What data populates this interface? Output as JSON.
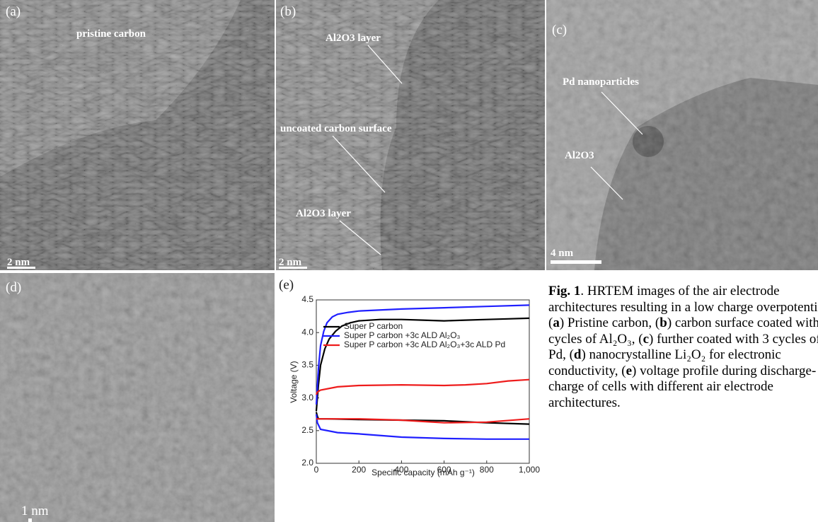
{
  "panels": [
    {
      "label": "(a)",
      "annotations": [
        "pristine carbon"
      ],
      "scale": "2 nm"
    },
    {
      "label": "(b)",
      "annotations": [
        "Al2O3 layer",
        "uncoated carbon surface",
        "Al2O3 layer"
      ],
      "scale": "2 nm"
    },
    {
      "label": "(c)",
      "annotations": [
        "Pd nanoparticles",
        "Al2O3"
      ],
      "scale": "4 nm"
    },
    {
      "label": "(d)",
      "annotations": [],
      "scale": "1 nm"
    },
    {
      "label": "(e)"
    }
  ],
  "chart_data": {
    "type": "line",
    "xlabel": "Specific capacity (mAh g⁻¹)",
    "ylabel": "Voltage (V)",
    "xlim": [
      0,
      1000
    ],
    "ylim": [
      2.0,
      4.5
    ],
    "xticks": [
      0,
      200,
      400,
      600,
      800,
      {
        "value": 1000,
        "label": "1,000"
      }
    ],
    "yticks": [
      {
        "value": 2.0,
        "label": "2.0"
      },
      {
        "value": 2.5,
        "label": "2.5"
      },
      {
        "value": 3.0,
        "label": "3.0"
      },
      {
        "value": 3.5,
        "label": "3.5"
      },
      {
        "value": 4.0,
        "label": "4.0"
      },
      {
        "value": 4.5,
        "label": "4.5"
      }
    ],
    "series": [
      {
        "name": "Super P carbon",
        "color": "#000000",
        "x": [
          0,
          10,
          20,
          40,
          60,
          90,
          120,
          160,
          200,
          300,
          400,
          500,
          600,
          700,
          800,
          900,
          1000,
          null,
          0,
          5,
          10,
          50,
          200,
          400,
          600,
          800,
          1000
        ],
        "values": [
          2.8,
          3.2,
          3.5,
          3.75,
          3.9,
          4.02,
          4.1,
          4.15,
          4.18,
          4.2,
          4.2,
          4.19,
          4.18,
          4.19,
          4.2,
          4.21,
          4.22,
          null,
          2.78,
          2.72,
          2.68,
          2.68,
          2.67,
          2.66,
          2.65,
          2.62,
          2.6
        ]
      },
      {
        "name": "Super P carbon +3c ALD Al₂O₃",
        "color": "#1f1fff",
        "x": [
          0,
          10,
          20,
          35,
          50,
          75,
          100,
          150,
          200,
          400,
          600,
          800,
          1000,
          null,
          0,
          5,
          20,
          100,
          200,
          400,
          600,
          800,
          1000
        ],
        "values": [
          2.9,
          3.45,
          3.8,
          4.02,
          4.15,
          4.24,
          4.28,
          4.31,
          4.33,
          4.36,
          4.38,
          4.4,
          4.42,
          null,
          2.75,
          2.62,
          2.52,
          2.47,
          2.45,
          2.4,
          2.38,
          2.37,
          2.37
        ]
      },
      {
        "name": "Super P carbon +3c ALD Al₂O₃+3c ALD Pd",
        "color": "#ee1c1c",
        "x": [
          0,
          5,
          20,
          100,
          200,
          400,
          600,
          700,
          800,
          900,
          1000,
          null,
          0,
          200,
          400,
          500,
          550,
          600,
          800,
          1000
        ],
        "values": [
          3.05,
          3.09,
          3.12,
          3.17,
          3.19,
          3.2,
          3.19,
          3.2,
          3.22,
          3.26,
          3.28,
          null,
          2.68,
          2.68,
          2.66,
          2.64,
          2.63,
          2.62,
          2.63,
          2.68
        ]
      }
    ]
  },
  "caption": {
    "runs": [
      {
        "text": "Fig. 1",
        "bold": true
      },
      {
        "text": ". HRTEM images of the air electrode architectures resulting in a low charge overpotential. (",
        "bold": false
      },
      {
        "text": "a",
        "bold": true
      },
      {
        "text": ") Pristine carbon, (",
        "bold": false
      },
      {
        "text": "b",
        "bold": true
      },
      {
        "text": ") carbon surface coated with 3 cycles of Al₂O₃, (",
        "bold": false
      },
      {
        "text": "c",
        "bold": true
      },
      {
        "text": ") further coated with 3 cycles of Pd, (",
        "bold": false
      },
      {
        "text": "d",
        "bold": true
      },
      {
        "text": ") nanocrystalline Li₂O₂ for electronic conductivity, (",
        "bold": false
      },
      {
        "text": "e",
        "bold": true
      },
      {
        "text": ") voltage profile during discharge-charge of cells with different air electrode architectures.",
        "bold": false
      }
    ]
  }
}
